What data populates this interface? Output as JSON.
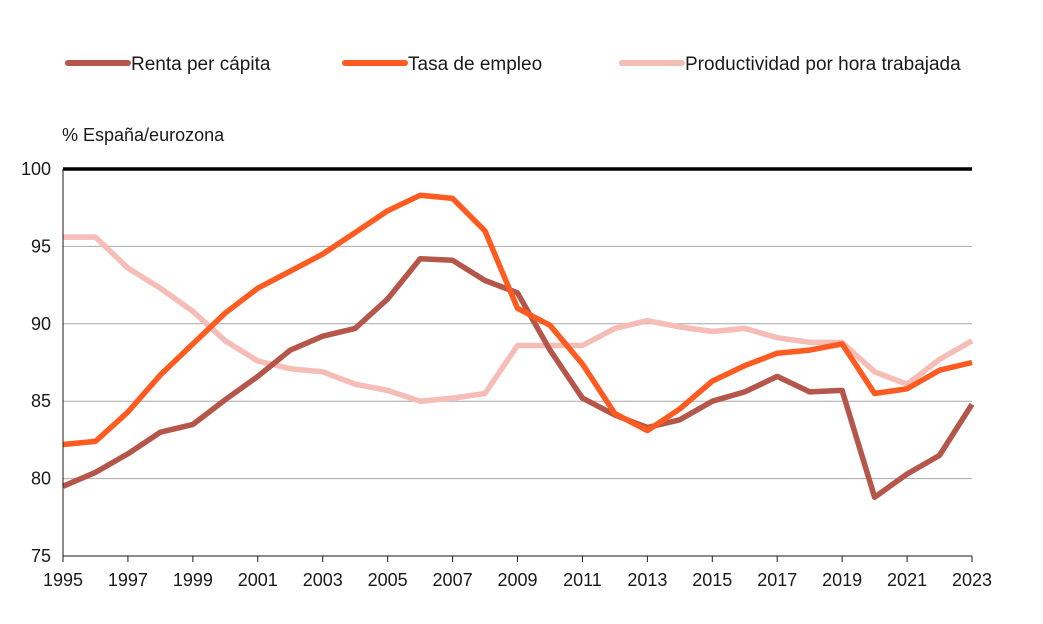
{
  "chart_data": {
    "type": "line",
    "title": "",
    "ylabel": "% España/eurozona",
    "xlabel": "",
    "ylim": [
      75,
      100
    ],
    "yticks": [
      75,
      80,
      85,
      90,
      95,
      100
    ],
    "xlim": [
      1995,
      2023
    ],
    "xticks": [
      1995,
      1997,
      1999,
      2001,
      2003,
      2005,
      2007,
      2009,
      2011,
      2013,
      2015,
      2017,
      2019,
      2021,
      2023
    ],
    "grid": true,
    "legend_position": "top",
    "x": [
      1995,
      1996,
      1997,
      1998,
      1999,
      2000,
      2001,
      2002,
      2003,
      2004,
      2005,
      2006,
      2007,
      2008,
      2009,
      2010,
      2011,
      2012,
      2013,
      2014,
      2015,
      2016,
      2017,
      2018,
      2019,
      2020,
      2021,
      2022,
      2023
    ],
    "series": [
      {
        "name": "Renta per cápita",
        "color": "#B5564A",
        "values": [
          79.5,
          80.4,
          81.6,
          83.0,
          83.5,
          85.1,
          86.6,
          88.3,
          89.2,
          89.7,
          91.6,
          94.2,
          94.1,
          92.8,
          92.0,
          88.3,
          85.2,
          84.1,
          83.3,
          83.8,
          85.0,
          85.6,
          86.6,
          85.6,
          85.7,
          78.8,
          80.3,
          81.5,
          84.8
        ]
      },
      {
        "name": "Tasa de empleo",
        "color": "#FF5A1F",
        "values": [
          82.2,
          82.4,
          84.3,
          86.7,
          88.7,
          90.7,
          92.3,
          93.4,
          94.5,
          95.9,
          97.3,
          98.3,
          98.1,
          96.0,
          91.0,
          89.9,
          87.4,
          84.2,
          83.1,
          84.5,
          86.3,
          87.3,
          88.1,
          88.3,
          88.7,
          85.5,
          85.8,
          87.0,
          87.5
        ]
      },
      {
        "name": "Productividad por hora trabajada",
        "color": "#F6BDB6",
        "values": [
          95.6,
          95.6,
          93.6,
          92.3,
          90.8,
          88.9,
          87.6,
          87.1,
          86.9,
          86.1,
          85.7,
          85.0,
          85.2,
          85.5,
          88.6,
          88.6,
          88.6,
          89.7,
          90.2,
          89.8,
          89.5,
          89.7,
          89.1,
          88.8,
          88.8,
          86.9,
          86.1,
          87.7,
          88.9
        ]
      }
    ]
  }
}
